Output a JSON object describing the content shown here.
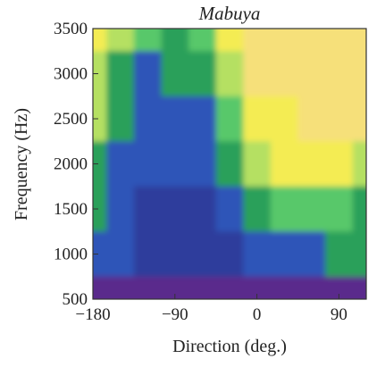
{
  "chart_data": {
    "type": "heatmap",
    "title": "Mabuya",
    "xlabel": "Direction (deg.)",
    "ylabel": "Frequency (Hz)",
    "xlim": [
      -180,
      120
    ],
    "ylim": [
      500,
      3500
    ],
    "x_ticks": [
      {
        "value": -180,
        "label": "−180"
      },
      {
        "value": -90,
        "label": "−90"
      },
      {
        "value": 0,
        "label": "0"
      },
      {
        "value": 90,
        "label": "90"
      }
    ],
    "y_ticks": [
      {
        "value": 500,
        "label": "500"
      },
      {
        "value": 1000,
        "label": "1000"
      },
      {
        "value": 1500,
        "label": "1500"
      },
      {
        "value": 2000,
        "label": "2000"
      },
      {
        "value": 2500,
        "label": "2500"
      },
      {
        "value": 3000,
        "label": "3000"
      },
      {
        "value": 3500,
        "label": "3500"
      }
    ],
    "colormap": [
      "#5a2a8c",
      "#2d3c9c",
      "#2f54b8",
      "#2aa05a",
      "#59c86b",
      "#b5e062",
      "#f4ec52",
      "#f6e07a"
    ],
    "levels": "low (purple/blue) to high (yellow)",
    "x": [
      -180,
      -150,
      -120,
      -90,
      -60,
      -30,
      0,
      30,
      60,
      90,
      120
    ],
    "y": [
      3500,
      3000,
      2500,
      2000,
      1500,
      1000,
      500
    ],
    "z": [
      [
        6,
        5,
        4,
        3,
        4,
        6,
        7,
        7,
        7,
        7,
        7
      ],
      [
        5,
        3,
        2,
        3,
        3,
        5,
        7,
        7,
        7,
        7,
        7
      ],
      [
        5,
        3,
        2,
        2,
        2,
        4,
        6,
        6,
        7,
        7,
        7
      ],
      [
        3,
        2,
        2,
        2,
        2,
        3,
        5,
        6,
        6,
        6,
        5
      ],
      [
        3,
        2,
        1,
        1,
        1,
        2,
        3,
        4,
        4,
        4,
        3
      ],
      [
        2,
        2,
        1,
        1,
        1,
        1,
        2,
        2,
        2,
        3,
        3
      ],
      [
        0,
        0,
        0,
        0,
        0,
        0,
        0,
        0,
        0,
        0,
        0
      ]
    ]
  }
}
